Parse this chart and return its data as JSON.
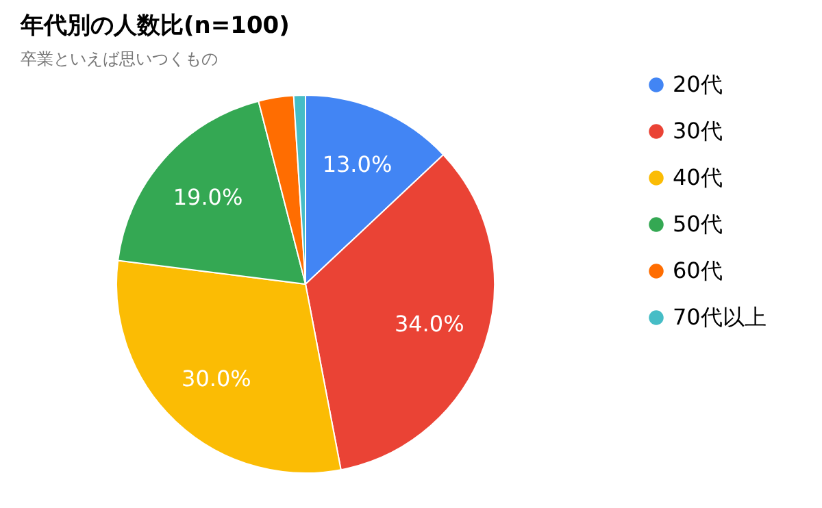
{
  "chart_data": {
    "type": "pie",
    "title": "年代別の人数比(n=100)",
    "subtitle": "卒業といえば思いつくもの",
    "categories": [
      "20代",
      "30代",
      "40代",
      "50代",
      "60代",
      "70代以上"
    ],
    "values": [
      13,
      34,
      30,
      19,
      3,
      1
    ],
    "colors": [
      "#4285f4",
      "#ea4335",
      "#fbbc04",
      "#34a853",
      "#ff6d01",
      "#46bdc6"
    ],
    "value_labels": [
      "13.0%",
      "34.0%",
      "30.0%",
      "19.0%",
      null,
      null
    ],
    "legend": "right"
  }
}
